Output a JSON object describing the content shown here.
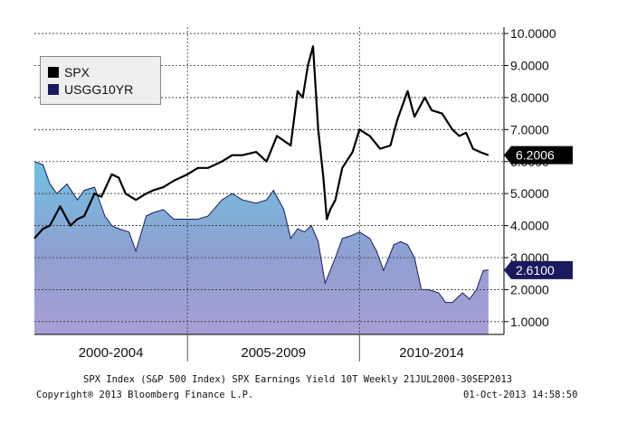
{
  "chart_data": {
    "type": "line",
    "y_ticks": [
      "10.0000",
      "9.0000",
      "8.0000",
      "7.0000",
      "6.0000",
      "5.0000",
      "4.0000",
      "3.0000",
      "2.0000",
      "1.0000"
    ],
    "ylim": [
      0.6,
      10.2
    ],
    "x_periods": [
      "2000-2004",
      "2005-2009",
      "2010-2014"
    ],
    "xlim": [
      2000.55,
      2014.2
    ],
    "grid": true,
    "legend": "top-left",
    "series": [
      {
        "name": "SPX",
        "type": "line",
        "color": "#000000",
        "last_value_label": "6.2006",
        "x": [
          2000.55,
          2000.8,
          2001.0,
          2001.3,
          2001.6,
          2001.8,
          2002.0,
          2002.3,
          2002.5,
          2002.8,
          2003.0,
          2003.2,
          2003.5,
          2003.8,
          2004.0,
          2004.3,
          2004.6,
          2005.0,
          2005.3,
          2005.6,
          2006.0,
          2006.3,
          2006.6,
          2007.0,
          2007.3,
          2007.6,
          2008.0,
          2008.2,
          2008.35,
          2008.5,
          2008.65,
          2008.8,
          2008.95,
          2009.05,
          2009.15,
          2009.3,
          2009.5,
          2009.8,
          2010.0,
          2010.3,
          2010.6,
          2010.9,
          2011.1,
          2011.4,
          2011.6,
          2011.9,
          2012.1,
          2012.4,
          2012.7,
          2012.9,
          2013.1,
          2013.3,
          2013.5,
          2013.75
        ],
        "y": [
          3.6,
          3.9,
          4.0,
          4.6,
          4.0,
          4.2,
          4.3,
          5.0,
          4.9,
          5.6,
          5.5,
          5.0,
          4.8,
          5.0,
          5.1,
          5.2,
          5.4,
          5.6,
          5.8,
          5.8,
          6.0,
          6.2,
          6.2,
          6.3,
          6.0,
          6.8,
          6.5,
          8.2,
          8.0,
          9.0,
          9.6,
          7.0,
          5.5,
          4.2,
          4.5,
          4.8,
          5.8,
          6.3,
          7.0,
          6.8,
          6.4,
          6.5,
          7.3,
          8.2,
          7.4,
          8.0,
          7.6,
          7.5,
          7.0,
          6.8,
          6.9,
          6.4,
          6.3,
          6.2
        ]
      },
      {
        "name": "USGG10YR",
        "type": "area",
        "color": "#1a1a5e",
        "fill": "#8f9fd0",
        "last_value_label": "2.6100",
        "x": [
          2000.55,
          2000.8,
          2001.0,
          2001.2,
          2001.5,
          2001.8,
          2002.0,
          2002.3,
          2002.6,
          2002.8,
          2003.0,
          2003.3,
          2003.5,
          2003.8,
          2004.0,
          2004.3,
          2004.6,
          2005.0,
          2005.3,
          2005.6,
          2006.0,
          2006.3,
          2006.6,
          2007.0,
          2007.3,
          2007.5,
          2007.8,
          2008.0,
          2008.2,
          2008.4,
          2008.6,
          2008.8,
          2009.0,
          2009.3,
          2009.5,
          2009.8,
          2010.0,
          2010.3,
          2010.5,
          2010.7,
          2011.0,
          2011.2,
          2011.4,
          2011.6,
          2011.8,
          2012.0,
          2012.3,
          2012.5,
          2012.7,
          2013.0,
          2013.2,
          2013.4,
          2013.6,
          2013.75
        ],
        "y": [
          6.0,
          5.9,
          5.3,
          5.0,
          5.3,
          4.8,
          5.1,
          5.2,
          4.3,
          4.0,
          3.9,
          3.8,
          3.2,
          4.3,
          4.4,
          4.5,
          4.2,
          4.2,
          4.2,
          4.3,
          4.8,
          5.0,
          4.8,
          4.7,
          4.8,
          5.1,
          4.5,
          3.6,
          3.9,
          3.8,
          4.0,
          3.5,
          2.2,
          3.0,
          3.6,
          3.7,
          3.8,
          3.6,
          3.2,
          2.6,
          3.4,
          3.5,
          3.4,
          3.0,
          2.0,
          2.0,
          1.9,
          1.6,
          1.6,
          1.9,
          1.7,
          2.0,
          2.6,
          2.61
        ]
      }
    ]
  },
  "footer": {
    "line1": "SPX Index (S&P 500 Index) SPX Earnings Yield 10T  Weekly 21JUL2000-30SEP2013",
    "copyright": "Copyright® 2013 Bloomberg Finance L.P.",
    "timestamp": "01-Oct-2013 14:58:50"
  }
}
